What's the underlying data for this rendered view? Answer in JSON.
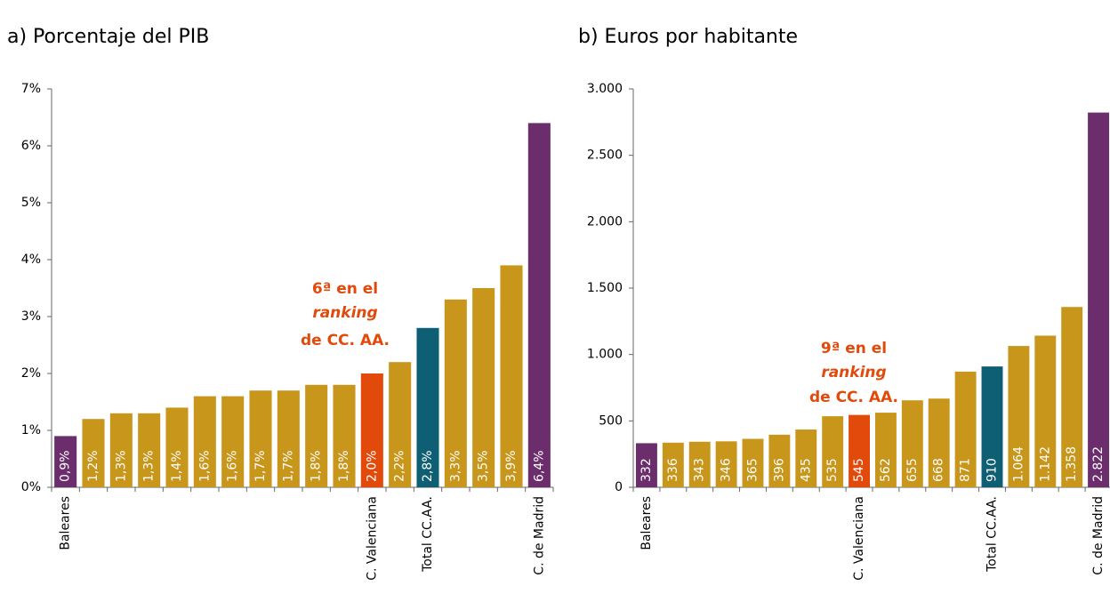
{
  "chart_data": [
    {
      "type": "bar",
      "title": "a) Porcentaje del PIB",
      "categories": [
        "Baleares",
        null,
        null,
        null,
        null,
        null,
        null,
        null,
        null,
        null,
        null,
        "C. Valenciana",
        null,
        "Total CC.AA.",
        null,
        null,
        null,
        "C. de Madrid"
      ],
      "values": [
        0.9,
        1.2,
        1.3,
        1.3,
        1.4,
        1.6,
        1.6,
        1.7,
        1.7,
        1.8,
        1.8,
        2.0,
        2.2,
        2.8,
        3.3,
        3.5,
        3.9,
        6.4
      ],
      "value_labels": [
        "0,9%",
        "1,2%",
        "1,3%",
        "1,3%",
        "1,4%",
        "1,6%",
        "1,6%",
        "1,7%",
        "1,7%",
        "1,8%",
        "1,8%",
        "2,0%",
        "2,2%",
        "2,8%",
        "3,3%",
        "3,5%",
        "3,9%",
        "6,4%"
      ],
      "colors": [
        "#6b2d6b",
        "#c8961a",
        "#c8961a",
        "#c8961a",
        "#c8961a",
        "#c8961a",
        "#c8961a",
        "#c8961a",
        "#c8961a",
        "#c8961a",
        "#c8961a",
        "#e24a0c",
        "#c8961a",
        "#0e5f73",
        "#c8961a",
        "#c8961a",
        "#c8961a",
        "#6b2d6b"
      ],
      "ylim": [
        0,
        7
      ],
      "yticks": [
        {
          "value": 0,
          "label": "0%"
        },
        {
          "value": 1,
          "label": "1%"
        },
        {
          "value": 2,
          "label": "2%"
        },
        {
          "value": 3,
          "label": "3%"
        },
        {
          "value": 4,
          "label": "4%"
        },
        {
          "value": 5,
          "label": "5%"
        },
        {
          "value": 6,
          "label": "6%"
        },
        {
          "value": 7,
          "label": "7%"
        }
      ],
      "annotation": [
        "6ª en el",
        "ranking",
        "de CC. AA."
      ]
    },
    {
      "type": "bar",
      "title": "b) Euros por habitante",
      "categories": [
        "Baleares",
        null,
        null,
        null,
        null,
        null,
        null,
        null,
        "C. Valenciana",
        null,
        null,
        null,
        null,
        "Total CC.AA.",
        null,
        null,
        null,
        "C. de Madrid"
      ],
      "values": [
        332,
        336,
        343,
        346,
        365,
        396,
        435,
        535,
        545,
        562,
        655,
        668,
        871,
        910,
        1064,
        1142,
        1358,
        2822
      ],
      "value_labels": [
        "332",
        "336",
        "343",
        "346",
        "365",
        "396",
        "435",
        "535",
        "545",
        "562",
        "655",
        "668",
        "871",
        "910",
        "1.064",
        "1.142",
        "1.358",
        "2.822"
      ],
      "colors": [
        "#6b2d6b",
        "#c8961a",
        "#c8961a",
        "#c8961a",
        "#c8961a",
        "#c8961a",
        "#c8961a",
        "#c8961a",
        "#e24a0c",
        "#c8961a",
        "#c8961a",
        "#c8961a",
        "#c8961a",
        "#0e5f73",
        "#c8961a",
        "#c8961a",
        "#c8961a",
        "#6b2d6b"
      ],
      "ylim": [
        0,
        3000
      ],
      "yticks": [
        0,
        500,
        {
          "value": 1000,
          "label": "1.000"
        },
        {
          "value": 1500,
          "label": "1.500"
        },
        {
          "value": 2000,
          "label": "2.000"
        },
        {
          "value": 2500,
          "label": "2.500"
        },
        {
          "value": 3000,
          "label": "3.000"
        }
      ],
      "annotation": [
        "9ª en el",
        "ranking",
        "de CC. AA."
      ]
    }
  ]
}
